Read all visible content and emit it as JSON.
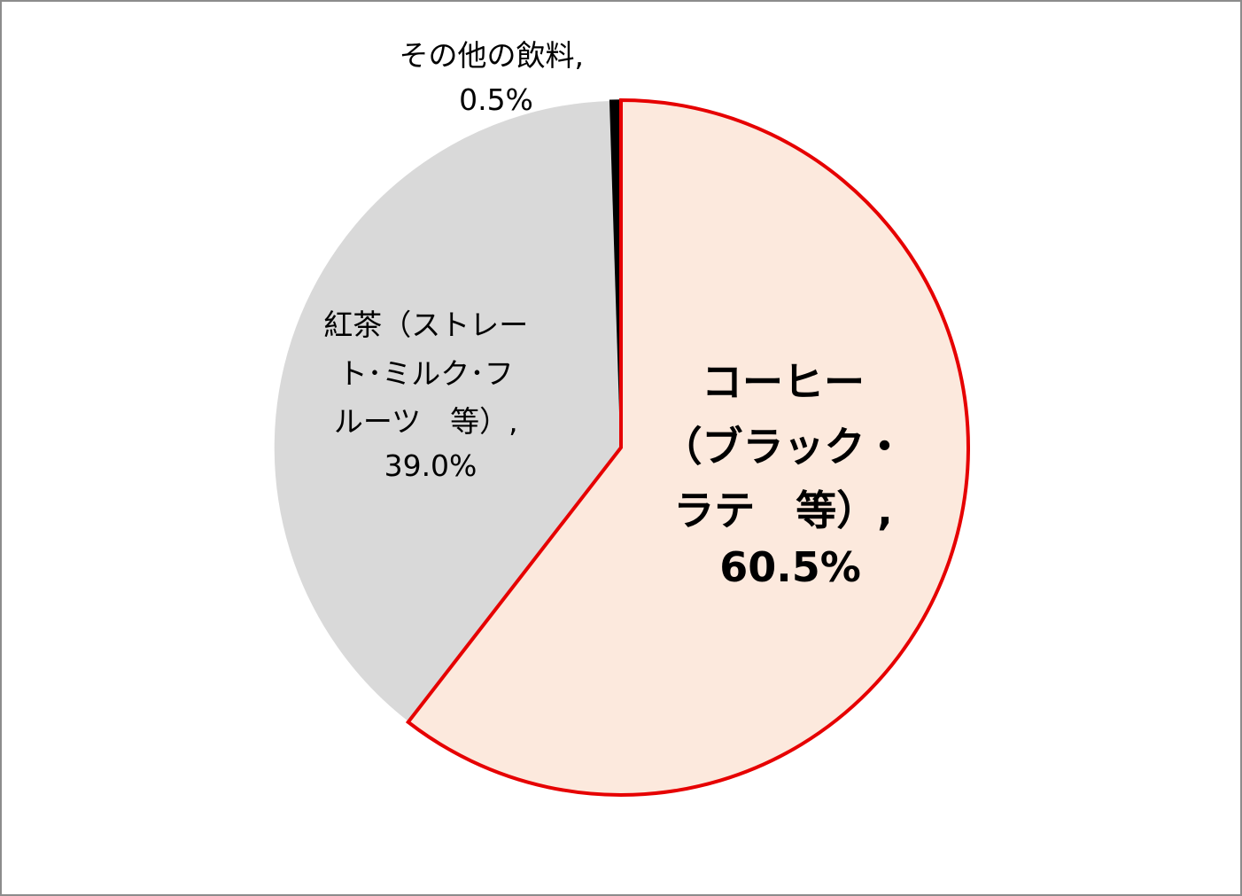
{
  "chart_data": {
    "type": "pie",
    "title": "",
    "start_angle_deg": 0,
    "direction": "clockwise",
    "slices": [
      {
        "label_lines": [
          "コーヒー",
          "（ブラック・",
          "ラテ　等）,",
          "60.5%"
        ],
        "value": 60.5,
        "fill": "#fce9dd",
        "stroke": "#e60000",
        "highlighted": true
      },
      {
        "label_lines": [
          "紅茶（ストレー",
          "ト･ミルク･フ",
          "ルーツ　等）,",
          "39.0%"
        ],
        "value": 39.0,
        "fill": "#d9d9d9",
        "stroke": "#ffffff",
        "highlighted": false
      },
      {
        "label_lines": [
          "その他の飲料,",
          "0.5%"
        ],
        "value": 0.5,
        "fill": "#000000",
        "stroke": "#000000",
        "highlighted": false
      }
    ]
  }
}
